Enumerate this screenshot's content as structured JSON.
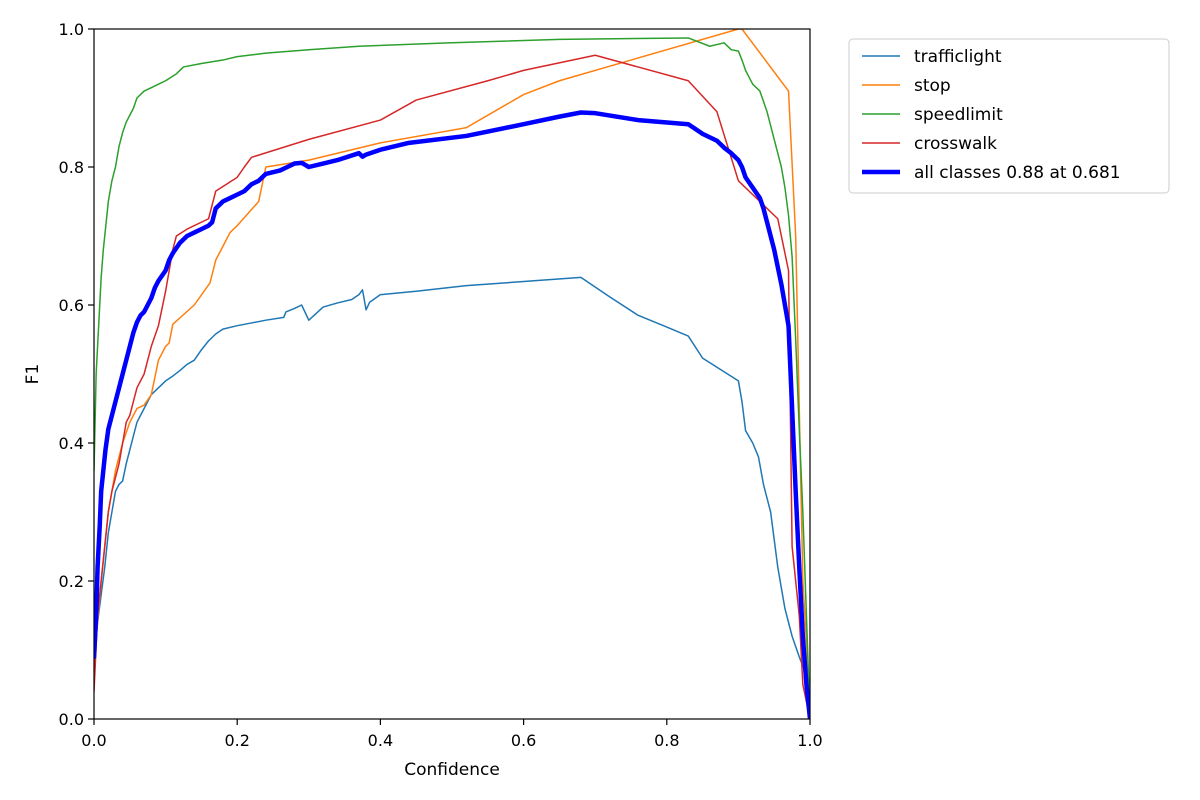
{
  "chart_data": {
    "type": "line",
    "xlabel": "Confidence",
    "ylabel": "F1",
    "xlim": [
      0.0,
      1.0
    ],
    "ylim": [
      0.0,
      1.0
    ],
    "xticks": [
      "0.0",
      "0.2",
      "0.4",
      "0.6",
      "0.8",
      "1.0"
    ],
    "yticks": [
      "0.0",
      "0.2",
      "0.4",
      "0.6",
      "0.8",
      "1.0"
    ],
    "grid": false,
    "legend_position": "outside-right-top",
    "series": [
      {
        "name": "trafficlight",
        "color": "#1f77b4",
        "line_width": 1.5,
        "points": [
          [
            0.0,
            0.09
          ],
          [
            0.005,
            0.14
          ],
          [
            0.01,
            0.18
          ],
          [
            0.015,
            0.22
          ],
          [
            0.02,
            0.27
          ],
          [
            0.025,
            0.3
          ],
          [
            0.03,
            0.33
          ],
          [
            0.035,
            0.34
          ],
          [
            0.04,
            0.345
          ],
          [
            0.045,
            0.37
          ],
          [
            0.05,
            0.39
          ],
          [
            0.055,
            0.41
          ],
          [
            0.06,
            0.43
          ],
          [
            0.065,
            0.44
          ],
          [
            0.07,
            0.45
          ],
          [
            0.08,
            0.47
          ],
          [
            0.09,
            0.48
          ],
          [
            0.1,
            0.49
          ],
          [
            0.11,
            0.497
          ],
          [
            0.12,
            0.505
          ],
          [
            0.13,
            0.514
          ],
          [
            0.14,
            0.52
          ],
          [
            0.15,
            0.535
          ],
          [
            0.16,
            0.548
          ],
          [
            0.17,
            0.558
          ],
          [
            0.18,
            0.565
          ],
          [
            0.2,
            0.57
          ],
          [
            0.22,
            0.574
          ],
          [
            0.24,
            0.578
          ],
          [
            0.265,
            0.582
          ],
          [
            0.268,
            0.59
          ],
          [
            0.28,
            0.595
          ],
          [
            0.29,
            0.6
          ],
          [
            0.3,
            0.578
          ],
          [
            0.32,
            0.597
          ],
          [
            0.34,
            0.603
          ],
          [
            0.36,
            0.608
          ],
          [
            0.37,
            0.615
          ],
          [
            0.375,
            0.622
          ],
          [
            0.38,
            0.593
          ],
          [
            0.385,
            0.604
          ],
          [
            0.4,
            0.615
          ],
          [
            0.45,
            0.62
          ],
          [
            0.52,
            0.628
          ],
          [
            0.6,
            0.634
          ],
          [
            0.68,
            0.64
          ],
          [
            0.72,
            0.612
          ],
          [
            0.76,
            0.585
          ],
          [
            0.8,
            0.568
          ],
          [
            0.83,
            0.555
          ],
          [
            0.85,
            0.523
          ],
          [
            0.9,
            0.49
          ],
          [
            0.905,
            0.46
          ],
          [
            0.91,
            0.418
          ],
          [
            0.92,
            0.4
          ],
          [
            0.928,
            0.38
          ],
          [
            0.935,
            0.34
          ],
          [
            0.945,
            0.3
          ],
          [
            0.955,
            0.22
          ],
          [
            0.965,
            0.16
          ],
          [
            0.975,
            0.12
          ],
          [
            0.985,
            0.09
          ],
          [
            1.0,
            0.05
          ]
        ]
      },
      {
        "name": "stop",
        "color": "#ff7f0e",
        "line_width": 1.5,
        "points": [
          [
            0.0,
            0.08
          ],
          [
            0.01,
            0.2
          ],
          [
            0.02,
            0.3
          ],
          [
            0.03,
            0.36
          ],
          [
            0.04,
            0.4
          ],
          [
            0.05,
            0.43
          ],
          [
            0.06,
            0.45
          ],
          [
            0.07,
            0.455
          ],
          [
            0.08,
            0.47
          ],
          [
            0.09,
            0.52
          ],
          [
            0.1,
            0.54
          ],
          [
            0.105,
            0.545
          ],
          [
            0.11,
            0.572
          ],
          [
            0.14,
            0.6
          ],
          [
            0.162,
            0.632
          ],
          [
            0.17,
            0.665
          ],
          [
            0.18,
            0.685
          ],
          [
            0.19,
            0.705
          ],
          [
            0.2,
            0.715
          ],
          [
            0.23,
            0.75
          ],
          [
            0.24,
            0.8
          ],
          [
            0.3,
            0.81
          ],
          [
            0.4,
            0.835
          ],
          [
            0.52,
            0.857
          ],
          [
            0.6,
            0.905
          ],
          [
            0.65,
            0.925
          ],
          [
            0.75,
            0.955
          ],
          [
            0.9,
            1.0
          ],
          [
            0.905,
            1.0
          ],
          [
            0.97,
            0.91
          ],
          [
            0.98,
            0.7
          ],
          [
            0.985,
            0.45
          ],
          [
            0.99,
            0.2
          ],
          [
            1.0,
            0.02
          ]
        ]
      },
      {
        "name": "speedlimit",
        "color": "#2ca02c",
        "line_width": 1.5,
        "points": [
          [
            0.0,
            0.36
          ],
          [
            0.003,
            0.5
          ],
          [
            0.006,
            0.56
          ],
          [
            0.01,
            0.64
          ],
          [
            0.013,
            0.68
          ],
          [
            0.016,
            0.71
          ],
          [
            0.02,
            0.75
          ],
          [
            0.025,
            0.78
          ],
          [
            0.03,
            0.8
          ],
          [
            0.035,
            0.83
          ],
          [
            0.04,
            0.85
          ],
          [
            0.045,
            0.865
          ],
          [
            0.05,
            0.875
          ],
          [
            0.055,
            0.885
          ],
          [
            0.06,
            0.9
          ],
          [
            0.07,
            0.91
          ],
          [
            0.08,
            0.915
          ],
          [
            0.09,
            0.92
          ],
          [
            0.1,
            0.925
          ],
          [
            0.115,
            0.935
          ],
          [
            0.125,
            0.945
          ],
          [
            0.15,
            0.95
          ],
          [
            0.18,
            0.955
          ],
          [
            0.2,
            0.96
          ],
          [
            0.24,
            0.965
          ],
          [
            0.3,
            0.97
          ],
          [
            0.37,
            0.975
          ],
          [
            0.5,
            0.98
          ],
          [
            0.65,
            0.985
          ],
          [
            0.83,
            0.987
          ],
          [
            0.86,
            0.975
          ],
          [
            0.88,
            0.98
          ],
          [
            0.89,
            0.97
          ],
          [
            0.9,
            0.968
          ],
          [
            0.905,
            0.955
          ],
          [
            0.91,
            0.94
          ],
          [
            0.915,
            0.93
          ],
          [
            0.92,
            0.92
          ],
          [
            0.93,
            0.91
          ],
          [
            0.94,
            0.88
          ],
          [
            0.945,
            0.86
          ],
          [
            0.95,
            0.84
          ],
          [
            0.955,
            0.82
          ],
          [
            0.96,
            0.8
          ],
          [
            0.965,
            0.77
          ],
          [
            0.97,
            0.73
          ],
          [
            0.975,
            0.67
          ],
          [
            0.98,
            0.55
          ],
          [
            0.985,
            0.42
          ],
          [
            0.99,
            0.3
          ],
          [
            0.995,
            0.15
          ],
          [
            1.0,
            0.0
          ]
        ]
      },
      {
        "name": "crosswalk",
        "color": "#d62728",
        "line_width": 1.5,
        "points": [
          [
            0.0,
            0.04
          ],
          [
            0.005,
            0.15
          ],
          [
            0.01,
            0.2
          ],
          [
            0.015,
            0.25
          ],
          [
            0.02,
            0.3
          ],
          [
            0.025,
            0.33
          ],
          [
            0.03,
            0.35
          ],
          [
            0.035,
            0.37
          ],
          [
            0.04,
            0.4
          ],
          [
            0.045,
            0.43
          ],
          [
            0.05,
            0.44
          ],
          [
            0.055,
            0.46
          ],
          [
            0.06,
            0.48
          ],
          [
            0.07,
            0.5
          ],
          [
            0.08,
            0.54
          ],
          [
            0.09,
            0.57
          ],
          [
            0.1,
            0.62
          ],
          [
            0.11,
            0.68
          ],
          [
            0.115,
            0.7
          ],
          [
            0.13,
            0.71
          ],
          [
            0.16,
            0.725
          ],
          [
            0.17,
            0.765
          ],
          [
            0.2,
            0.785
          ],
          [
            0.21,
            0.8
          ],
          [
            0.22,
            0.814
          ],
          [
            0.3,
            0.84
          ],
          [
            0.4,
            0.868
          ],
          [
            0.45,
            0.897
          ],
          [
            0.55,
            0.925
          ],
          [
            0.6,
            0.94
          ],
          [
            0.7,
            0.962
          ],
          [
            0.83,
            0.925
          ],
          [
            0.87,
            0.88
          ],
          [
            0.9,
            0.78
          ],
          [
            0.94,
            0.74
          ],
          [
            0.955,
            0.725
          ],
          [
            0.97,
            0.65
          ],
          [
            0.975,
            0.25
          ],
          [
            0.985,
            0.15
          ],
          [
            0.99,
            0.05
          ],
          [
            1.0,
            0.0
          ]
        ]
      },
      {
        "name": "all classes 0.88 at 0.681",
        "color": "#0000ff",
        "line_width": 4.5,
        "points": [
          [
            0.0,
            0.09
          ],
          [
            0.003,
            0.15
          ],
          [
            0.005,
            0.22
          ],
          [
            0.008,
            0.28
          ],
          [
            0.01,
            0.33
          ],
          [
            0.013,
            0.36
          ],
          [
            0.016,
            0.39
          ],
          [
            0.02,
            0.42
          ],
          [
            0.025,
            0.44
          ],
          [
            0.03,
            0.46
          ],
          [
            0.035,
            0.48
          ],
          [
            0.04,
            0.5
          ],
          [
            0.045,
            0.52
          ],
          [
            0.05,
            0.54
          ],
          [
            0.055,
            0.56
          ],
          [
            0.06,
            0.575
          ],
          [
            0.065,
            0.585
          ],
          [
            0.07,
            0.59
          ],
          [
            0.075,
            0.6
          ],
          [
            0.08,
            0.61
          ],
          [
            0.085,
            0.625
          ],
          [
            0.09,
            0.635
          ],
          [
            0.1,
            0.65
          ],
          [
            0.105,
            0.665
          ],
          [
            0.11,
            0.675
          ],
          [
            0.12,
            0.69
          ],
          [
            0.13,
            0.7
          ],
          [
            0.14,
            0.705
          ],
          [
            0.15,
            0.71
          ],
          [
            0.16,
            0.715
          ],
          [
            0.165,
            0.72
          ],
          [
            0.17,
            0.74
          ],
          [
            0.175,
            0.745
          ],
          [
            0.18,
            0.75
          ],
          [
            0.19,
            0.755
          ],
          [
            0.2,
            0.76
          ],
          [
            0.21,
            0.765
          ],
          [
            0.22,
            0.775
          ],
          [
            0.23,
            0.78
          ],
          [
            0.24,
            0.79
          ],
          [
            0.26,
            0.795
          ],
          [
            0.27,
            0.8
          ],
          [
            0.28,
            0.805
          ],
          [
            0.29,
            0.806
          ],
          [
            0.3,
            0.8
          ],
          [
            0.32,
            0.805
          ],
          [
            0.34,
            0.81
          ],
          [
            0.37,
            0.82
          ],
          [
            0.375,
            0.815
          ],
          [
            0.38,
            0.818
          ],
          [
            0.4,
            0.825
          ],
          [
            0.44,
            0.835
          ],
          [
            0.52,
            0.845
          ],
          [
            0.6,
            0.862
          ],
          [
            0.65,
            0.873
          ],
          [
            0.68,
            0.879
          ],
          [
            0.7,
            0.878
          ],
          [
            0.76,
            0.868
          ],
          [
            0.83,
            0.862
          ],
          [
            0.84,
            0.855
          ],
          [
            0.85,
            0.848
          ],
          [
            0.87,
            0.838
          ],
          [
            0.88,
            0.828
          ],
          [
            0.89,
            0.82
          ],
          [
            0.9,
            0.81
          ],
          [
            0.905,
            0.8
          ],
          [
            0.91,
            0.785
          ],
          [
            0.92,
            0.77
          ],
          [
            0.93,
            0.755
          ],
          [
            0.935,
            0.74
          ],
          [
            0.94,
            0.72
          ],
          [
            0.95,
            0.68
          ],
          [
            0.96,
            0.63
          ],
          [
            0.965,
            0.6
          ],
          [
            0.97,
            0.57
          ],
          [
            0.975,
            0.45
          ],
          [
            0.98,
            0.33
          ],
          [
            0.985,
            0.22
          ],
          [
            0.99,
            0.12
          ],
          [
            0.995,
            0.05
          ],
          [
            1.0,
            0.0
          ]
        ]
      }
    ]
  }
}
